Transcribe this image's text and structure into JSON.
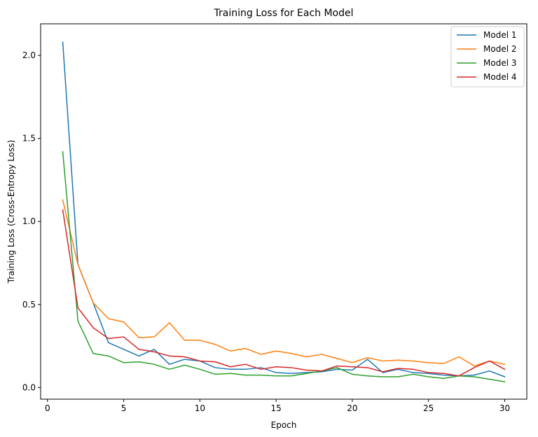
{
  "chart_data": {
    "type": "line",
    "title": "Training Loss for Each Model",
    "xlabel": "Epoch",
    "ylabel": "Training Loss (Cross-Entropy Loss)",
    "xlim": [
      -0.45,
      31.45
    ],
    "ylim": [
      -0.07,
      2.19
    ],
    "xticks": [
      0,
      5,
      10,
      15,
      20,
      25,
      30
    ],
    "xtick_labels": [
      "0",
      "5",
      "10",
      "15",
      "20",
      "25",
      "30"
    ],
    "yticks": [
      0.0,
      0.5,
      1.0,
      1.5,
      2.0
    ],
    "ytick_labels": [
      "0.0",
      "0.5",
      "1.0",
      "1.5",
      "2.0"
    ],
    "grid": false,
    "legend_position": "top-right",
    "x": [
      1,
      2,
      3,
      4,
      5,
      6,
      7,
      8,
      9,
      10,
      11,
      12,
      13,
      14,
      15,
      16,
      17,
      18,
      19,
      20,
      21,
      22,
      23,
      24,
      25,
      26,
      27,
      28,
      29,
      30
    ],
    "series": [
      {
        "name": "Model 1",
        "color": "#1f77b4",
        "values": [
          2.08,
          0.74,
          0.51,
          0.27,
          0.23,
          0.19,
          0.23,
          0.14,
          0.17,
          0.16,
          0.12,
          0.11,
          0.11,
          0.12,
          0.09,
          0.085,
          0.09,
          0.095,
          0.11,
          0.105,
          0.17,
          0.09,
          0.11,
          0.09,
          0.085,
          0.075,
          0.07,
          0.075,
          0.1,
          0.065
        ]
      },
      {
        "name": "Model 2",
        "color": "#ff7f0e",
        "values": [
          1.13,
          0.74,
          0.51,
          0.415,
          0.395,
          0.3,
          0.305,
          0.39,
          0.285,
          0.285,
          0.26,
          0.22,
          0.235,
          0.2,
          0.22,
          0.205,
          0.185,
          0.2,
          0.175,
          0.15,
          0.18,
          0.16,
          0.165,
          0.16,
          0.15,
          0.145,
          0.185,
          0.13,
          0.16,
          0.14
        ]
      },
      {
        "name": "Model 3",
        "color": "#2ca02c",
        "values": [
          1.42,
          0.4,
          0.205,
          0.19,
          0.15,
          0.155,
          0.14,
          0.11,
          0.135,
          0.11,
          0.08,
          0.085,
          0.075,
          0.075,
          0.07,
          0.07,
          0.085,
          0.1,
          0.12,
          0.08,
          0.07,
          0.065,
          0.065,
          0.08,
          0.065,
          0.055,
          0.07,
          0.065,
          0.05,
          0.035
        ]
      },
      {
        "name": "Model 4",
        "color": "#d62728",
        "values": [
          1.07,
          0.48,
          0.36,
          0.295,
          0.305,
          0.23,
          0.215,
          0.19,
          0.185,
          0.16,
          0.155,
          0.125,
          0.14,
          0.11,
          0.125,
          0.12,
          0.105,
          0.1,
          0.13,
          0.125,
          0.12,
          0.095,
          0.115,
          0.11,
          0.09,
          0.085,
          0.07,
          0.12,
          0.16,
          0.11
        ]
      }
    ]
  }
}
